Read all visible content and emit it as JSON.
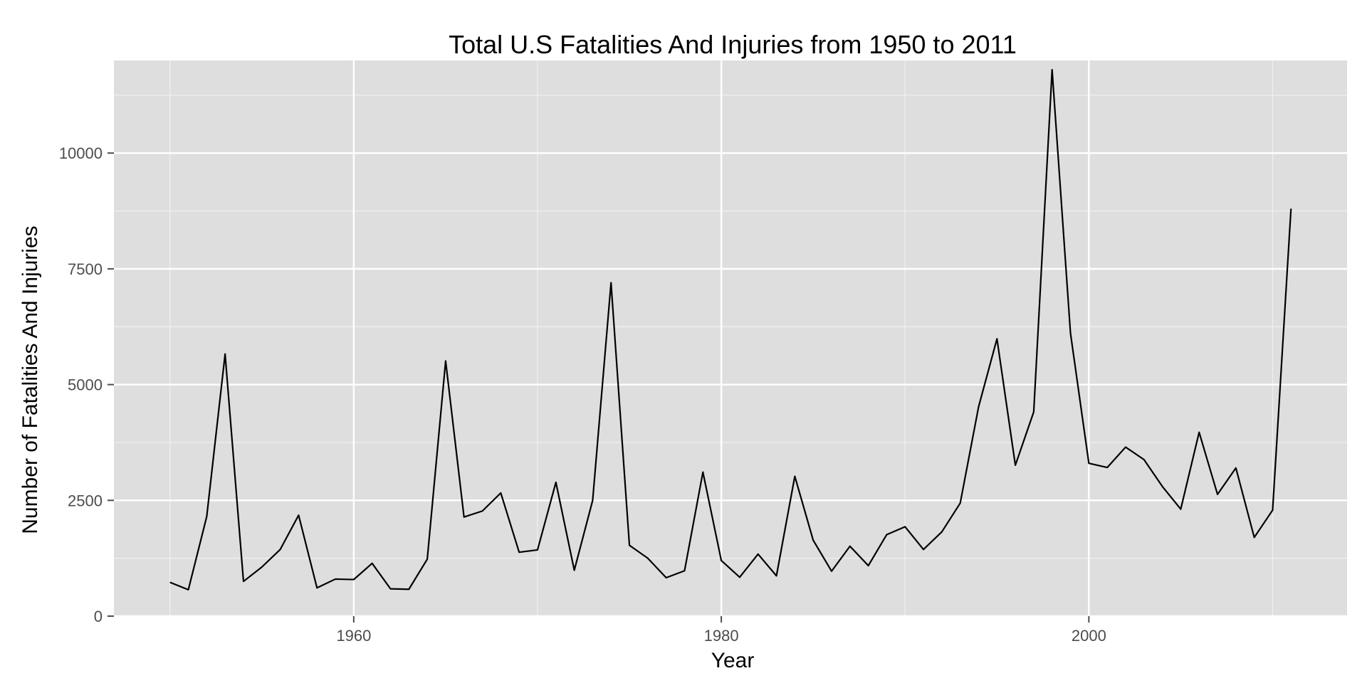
{
  "chart_data": {
    "type": "line",
    "title": "Total U.S Fatalities And Injuries from 1950 to 2011",
    "xlabel": "Year",
    "ylabel": "Number of Fatalities And Injuries",
    "xlim": [
      1946.95,
      2014.05
    ],
    "ylim": [
      0,
      12000
    ],
    "x_ticks": [
      1960,
      1980,
      2000
    ],
    "x_minor_ticks": [
      1950,
      1970,
      1990,
      2010
    ],
    "y_ticks": [
      0,
      2500,
      5000,
      7500,
      10000
    ],
    "y_minor_ticks": [
      1250,
      3750,
      6250,
      8750,
      11250
    ],
    "grid": true,
    "panel_color": "#dedede",
    "line_color": "#000000",
    "series": [
      {
        "x": [
          1950,
          1951,
          1952,
          1953,
          1954,
          1955,
          1956,
          1957,
          1958,
          1959,
          1960,
          1961,
          1962,
          1963,
          1964,
          1965,
          1966,
          1967,
          1968,
          1969,
          1970,
          1971,
          1972,
          1973,
          1974,
          1975,
          1976,
          1977,
          1978,
          1979,
          1980,
          1981,
          1982,
          1983,
          1984,
          1985,
          1986,
          1987,
          1988,
          1989,
          1990,
          1991,
          1992,
          1993,
          1994,
          1995,
          1996,
          1997,
          1998,
          1999,
          2000,
          2001,
          2002,
          2003,
          2004,
          2005,
          2006,
          2007,
          2008,
          2009,
          2010,
          2011
        ],
        "values": [
          730,
          570,
          2150,
          5660,
          750,
          1060,
          1440,
          2180,
          610,
          800,
          790,
          1140,
          590,
          580,
          1230,
          5510,
          2140,
          2270,
          2660,
          1380,
          1430,
          2890,
          990,
          2500,
          7200,
          1530,
          1250,
          830,
          980,
          3110,
          1200,
          840,
          1340,
          870,
          3020,
          1640,
          970,
          1510,
          1090,
          1760,
          1930,
          1440,
          1820,
          2440,
          4520,
          5990,
          3260,
          4410,
          11800,
          6110,
          3300,
          3210,
          3650,
          3380,
          2800,
          2310,
          3970,
          2630,
          3200,
          1700,
          2290,
          8800
        ]
      }
    ]
  }
}
